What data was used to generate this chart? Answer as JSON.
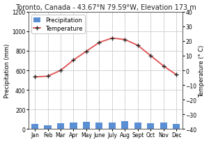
{
  "title": "Toronto, Canada - 43.67°N 79.59°W, Elevation 173 m",
  "months": [
    "Jan",
    "Feb",
    "Mar",
    "Apr",
    "May",
    "June",
    "July",
    "Aug",
    "Sept",
    "Oct",
    "Nov",
    "Dec"
  ],
  "precipitation": [
    52,
    40,
    58,
    64,
    70,
    68,
    68,
    80,
    68,
    62,
    68,
    52
  ],
  "temperature": [
    -4.5,
    -4.0,
    0.0,
    7.0,
    13.0,
    19.0,
    22.0,
    21.0,
    17.0,
    10.0,
    3.0,
    -3.0
  ],
  "bar_color": "#5b8fd4",
  "line_color": "#e05050",
  "marker_color": "#222222",
  "ylim_precip": [
    0,
    1200
  ],
  "ylim_temp": [
    -40,
    40
  ],
  "yticks_precip": [
    0,
    200,
    400,
    600,
    800,
    1000,
    1200
  ],
  "yticks_temp": [
    -40,
    -30,
    -20,
    -10,
    0,
    10,
    20,
    30,
    40
  ],
  "ylabel_left": "Precipitation (mm)",
  "ylabel_right": "Temperature (° C)",
  "bg_color": "#ffffff",
  "plot_bg_color": "#ffffff",
  "grid_color": "#cccccc",
  "title_fontsize": 7.0,
  "label_fontsize": 6.0,
  "tick_fontsize": 5.5,
  "legend_fontsize": 6.0
}
